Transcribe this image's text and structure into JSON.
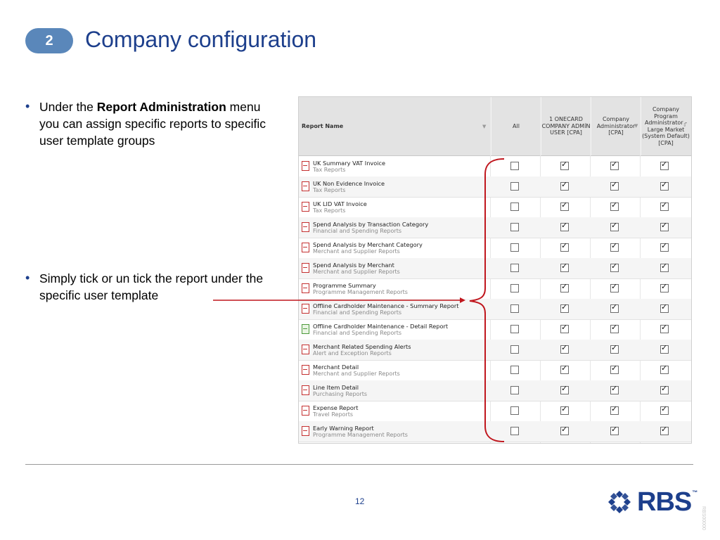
{
  "slide": {
    "number": "2",
    "title": "Company configuration",
    "page_number": "12",
    "ref_code": "RBS00000",
    "brand": "RBS",
    "brand_tm": "™"
  },
  "bullets": [
    {
      "pre": "Under the ",
      "bold": "Report Administration",
      "post": " menu you can assign specific reports to specific user template groups"
    },
    {
      "pre": "Simply tick or un tick the report under the specific user template",
      "bold": "",
      "post": ""
    }
  ],
  "table": {
    "headers": {
      "report_name": "Report Name",
      "all": "All",
      "col1": "1 ONECARD COMPANY ADMIN USER [CPA]",
      "col2": "Company Administrator [CPA]",
      "col3": "Company Program Administrator - Large Market (System Default) [CPA]"
    },
    "rows": [
      {
        "name": "UK Summary VAT Invoice",
        "category": "Tax Reports",
        "icon": "pdf-icon",
        "all": false,
        "col1": true,
        "col2": true,
        "col3": true
      },
      {
        "name": "UK Non Evidence Invoice",
        "category": "Tax Reports",
        "icon": "pdf-icon",
        "all": false,
        "col1": true,
        "col2": true,
        "col3": true
      },
      {
        "name": "UK LID VAT Invoice",
        "category": "Tax Reports",
        "icon": "pdf-icon",
        "all": false,
        "col1": true,
        "col2": true,
        "col3": true
      },
      {
        "name": "Spend Analysis by Transaction Category",
        "category": "Financial and Spending Reports",
        "icon": "pdf-icon",
        "all": false,
        "col1": true,
        "col2": true,
        "col3": true
      },
      {
        "name": "Spend Analysis by Merchant Category",
        "category": "Merchant and Supplier Reports",
        "icon": "pdf-icon",
        "all": false,
        "col1": true,
        "col2": true,
        "col3": true
      },
      {
        "name": "Spend Analysis by Merchant",
        "category": "Merchant and Supplier Reports",
        "icon": "pdf-icon",
        "all": false,
        "col1": true,
        "col2": true,
        "col3": true
      },
      {
        "name": "Programme Summary",
        "category": "Programme Management Reports",
        "icon": "pdf-icon",
        "all": false,
        "col1": true,
        "col2": true,
        "col3": true
      },
      {
        "name": "Offline Cardholder Maintenance - Summary Report",
        "category": "Financial and Spending Reports",
        "icon": "pdf-icon",
        "all": false,
        "col1": true,
        "col2": true,
        "col3": true
      },
      {
        "name": "Offline Cardholder Maintenance - Detail Report",
        "category": "Financial and Spending Reports",
        "icon": "excel-icon",
        "all": false,
        "col1": true,
        "col2": true,
        "col3": true
      },
      {
        "name": "Merchant Related Spending Alerts",
        "category": "Alert and Exception Reports",
        "icon": "pdf-icon",
        "all": false,
        "col1": true,
        "col2": true,
        "col3": true
      },
      {
        "name": "Merchant Detail",
        "category": "Merchant and Supplier Reports",
        "icon": "pdf-icon",
        "all": false,
        "col1": true,
        "col2": true,
        "col3": true
      },
      {
        "name": "Line Item Detail",
        "category": "Purchasing Reports",
        "icon": "pdf-icon",
        "all": false,
        "col1": true,
        "col2": true,
        "col3": true
      },
      {
        "name": "Expense Report",
        "category": "Travel Reports",
        "icon": "pdf-icon",
        "all": false,
        "col1": true,
        "col2": true,
        "col3": true
      },
      {
        "name": "Early Warning Report",
        "category": "Programme Management Reports",
        "icon": "pdf-icon",
        "all": false,
        "col1": true,
        "col2": true,
        "col3": true
      }
    ]
  },
  "colors": {
    "title": "#1d3f8c",
    "badge": "#5a87ba",
    "annotation": "#c0161d"
  }
}
